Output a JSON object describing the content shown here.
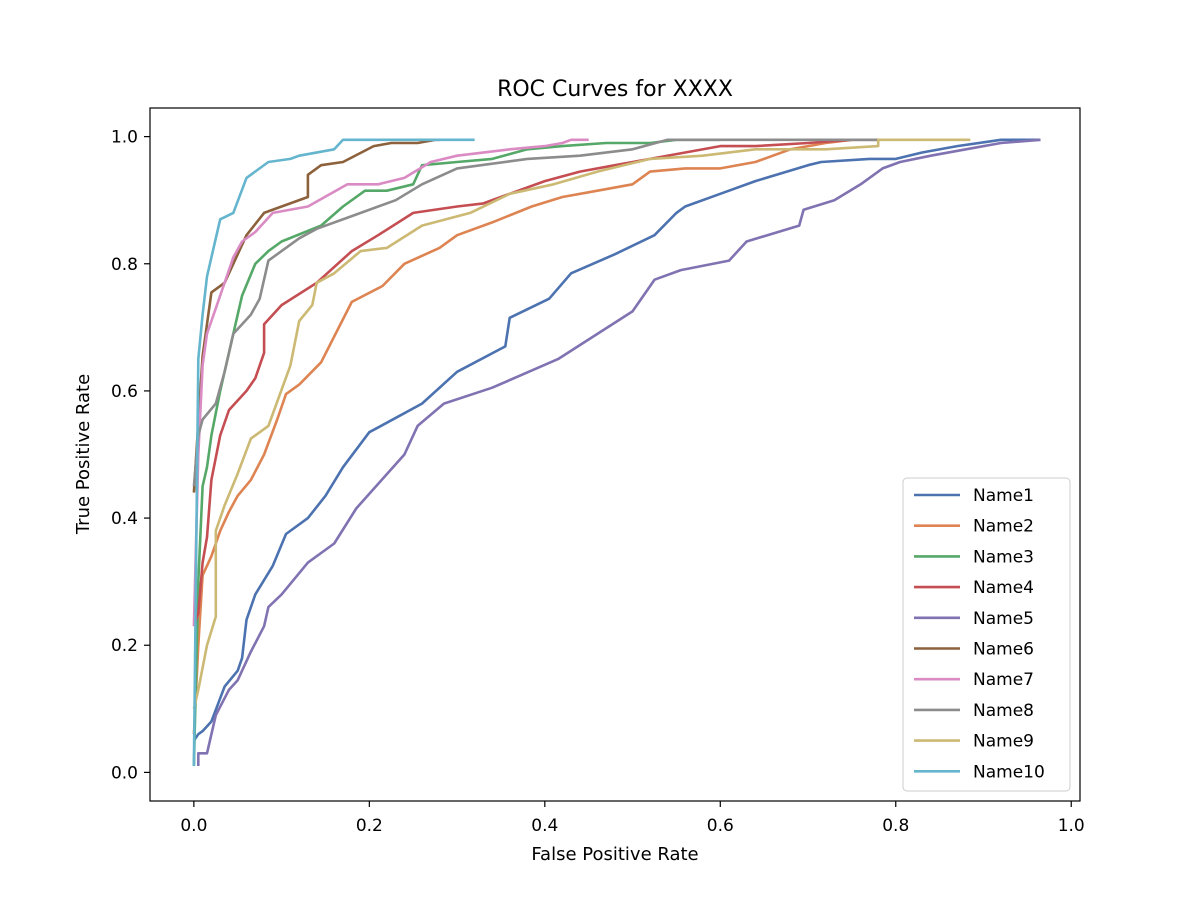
{
  "chart_data": {
    "type": "line",
    "title": "ROC Curves for XXXX",
    "xlabel": "False Positive Rate",
    "ylabel": "True Positive Rate",
    "xlim": [
      -0.05,
      1.01
    ],
    "ylim": [
      -0.045,
      1.045
    ],
    "xticks": [
      0.0,
      0.2,
      0.4,
      0.6,
      0.8,
      1.0
    ],
    "xtick_labels": [
      "0.0",
      "0.2",
      "0.4",
      "0.6",
      "0.8",
      "1.0"
    ],
    "yticks": [
      0.0,
      0.2,
      0.4,
      0.6,
      0.8,
      1.0
    ],
    "ytick_labels": [
      "0.0",
      "0.2",
      "0.4",
      "0.6",
      "0.8",
      "1.0"
    ],
    "grid": false,
    "legend_position": "lower-right",
    "series": [
      {
        "name": "Name1",
        "color": "#4c72b0",
        "x": [
          0.0,
          0.005,
          0.01,
          0.02,
          0.035,
          0.05,
          0.055,
          0.06,
          0.07,
          0.09,
          0.105,
          0.13,
          0.15,
          0.17,
          0.2,
          0.22,
          0.26,
          0.3,
          0.355,
          0.36,
          0.405,
          0.43,
          0.48,
          0.525,
          0.55,
          0.56,
          0.6,
          0.64,
          0.7,
          0.715,
          0.77,
          0.8,
          0.83,
          0.87,
          0.92,
          0.965
        ],
        "y": [
          0.05,
          0.06,
          0.065,
          0.08,
          0.135,
          0.16,
          0.18,
          0.24,
          0.28,
          0.325,
          0.375,
          0.4,
          0.435,
          0.48,
          0.535,
          0.55,
          0.58,
          0.63,
          0.67,
          0.715,
          0.745,
          0.785,
          0.815,
          0.845,
          0.88,
          0.89,
          0.91,
          0.93,
          0.955,
          0.96,
          0.965,
          0.965,
          0.975,
          0.985,
          0.995,
          0.995
        ]
      },
      {
        "name": "Name2",
        "color": "#dd8452",
        "x": [
          0.0,
          0.005,
          0.01,
          0.02,
          0.03,
          0.04,
          0.05,
          0.065,
          0.08,
          0.095,
          0.105,
          0.12,
          0.145,
          0.18,
          0.215,
          0.24,
          0.28,
          0.3,
          0.34,
          0.385,
          0.42,
          0.46,
          0.5,
          0.52,
          0.56,
          0.6,
          0.64,
          0.68,
          0.72,
          0.75
        ],
        "y": [
          0.06,
          0.2,
          0.31,
          0.34,
          0.38,
          0.41,
          0.435,
          0.46,
          0.5,
          0.555,
          0.595,
          0.61,
          0.645,
          0.74,
          0.765,
          0.8,
          0.825,
          0.845,
          0.865,
          0.89,
          0.905,
          0.915,
          0.925,
          0.945,
          0.95,
          0.95,
          0.96,
          0.98,
          0.99,
          0.995
        ]
      },
      {
        "name": "Name3",
        "color": "#55a868",
        "x": [
          0.0,
          0.005,
          0.01,
          0.015,
          0.02,
          0.03,
          0.04,
          0.05,
          0.055,
          0.07,
          0.085,
          0.1,
          0.145,
          0.17,
          0.195,
          0.22,
          0.25,
          0.26,
          0.3,
          0.34,
          0.38,
          0.42,
          0.47,
          0.52,
          0.55,
          0.6
        ],
        "y": [
          0.01,
          0.3,
          0.45,
          0.48,
          0.53,
          0.6,
          0.66,
          0.72,
          0.75,
          0.8,
          0.82,
          0.835,
          0.86,
          0.89,
          0.915,
          0.915,
          0.925,
          0.955,
          0.96,
          0.965,
          0.98,
          0.985,
          0.99,
          0.99,
          0.995,
          0.995
        ]
      },
      {
        "name": "Name4",
        "color": "#c44e52",
        "x": [
          0.0,
          0.005,
          0.01,
          0.015,
          0.02,
          0.03,
          0.04,
          0.06,
          0.07,
          0.08,
          0.08,
          0.1,
          0.14,
          0.18,
          0.21,
          0.25,
          0.3,
          0.33,
          0.36,
          0.4,
          0.44,
          0.48,
          0.52,
          0.56,
          0.6,
          0.64,
          0.7,
          0.75,
          0.78
        ],
        "y": [
          0.23,
          0.25,
          0.33,
          0.37,
          0.46,
          0.53,
          0.57,
          0.6,
          0.62,
          0.66,
          0.705,
          0.735,
          0.77,
          0.82,
          0.845,
          0.88,
          0.89,
          0.895,
          0.91,
          0.93,
          0.945,
          0.955,
          0.965,
          0.975,
          0.985,
          0.985,
          0.99,
          0.995,
          0.995
        ]
      },
      {
        "name": "Name5",
        "color": "#8172b2",
        "x": [
          0.005,
          0.005,
          0.015,
          0.025,
          0.04,
          0.05,
          0.065,
          0.08,
          0.085,
          0.1,
          0.13,
          0.16,
          0.185,
          0.24,
          0.255,
          0.285,
          0.34,
          0.415,
          0.5,
          0.525,
          0.555,
          0.61,
          0.63,
          0.69,
          0.695,
          0.73,
          0.76,
          0.785,
          0.805,
          0.84,
          0.88,
          0.92,
          0.965
        ],
        "y": [
          0.01,
          0.03,
          0.03,
          0.09,
          0.13,
          0.145,
          0.19,
          0.23,
          0.26,
          0.28,
          0.33,
          0.36,
          0.415,
          0.5,
          0.545,
          0.58,
          0.605,
          0.65,
          0.725,
          0.775,
          0.79,
          0.805,
          0.835,
          0.86,
          0.885,
          0.9,
          0.925,
          0.95,
          0.96,
          0.97,
          0.98,
          0.99,
          0.995
        ]
      },
      {
        "name": "Name6",
        "color": "#8c613c",
        "x": [
          0.0,
          0.005,
          0.01,
          0.02,
          0.035,
          0.045,
          0.06,
          0.08,
          0.1,
          0.13,
          0.13,
          0.145,
          0.17,
          0.205,
          0.225,
          0.255,
          0.275,
          0.28
        ],
        "y": [
          0.44,
          0.55,
          0.655,
          0.755,
          0.77,
          0.8,
          0.845,
          0.88,
          0.89,
          0.905,
          0.94,
          0.955,
          0.96,
          0.985,
          0.99,
          0.99,
          0.995,
          0.995
        ]
      },
      {
        "name": "Name7",
        "color": "#da8bc3",
        "x": [
          0.0,
          0.005,
          0.01,
          0.015,
          0.025,
          0.045,
          0.055,
          0.07,
          0.09,
          0.13,
          0.175,
          0.21,
          0.24,
          0.27,
          0.3,
          0.36,
          0.4,
          0.42,
          0.43,
          0.45
        ],
        "y": [
          0.23,
          0.5,
          0.64,
          0.69,
          0.73,
          0.81,
          0.835,
          0.85,
          0.88,
          0.89,
          0.925,
          0.925,
          0.935,
          0.96,
          0.97,
          0.98,
          0.985,
          0.99,
          0.995,
          0.995
        ]
      },
      {
        "name": "Name8",
        "color": "#8c8c8c",
        "x": [
          0.0,
          0.005,
          0.01,
          0.025,
          0.035,
          0.045,
          0.055,
          0.065,
          0.075,
          0.085,
          0.12,
          0.14,
          0.18,
          0.23,
          0.26,
          0.3,
          0.38,
          0.44,
          0.5,
          0.54,
          0.6,
          0.7,
          0.78
        ],
        "y": [
          0.45,
          0.53,
          0.555,
          0.58,
          0.63,
          0.69,
          0.705,
          0.72,
          0.745,
          0.805,
          0.84,
          0.855,
          0.875,
          0.9,
          0.925,
          0.95,
          0.965,
          0.97,
          0.98,
          0.995,
          0.995,
          0.995,
          0.995
        ]
      },
      {
        "name": "Name9",
        "color": "#ccb974",
        "x": [
          0.0,
          0.005,
          0.015,
          0.025,
          0.025,
          0.035,
          0.05,
          0.065,
          0.085,
          0.11,
          0.12,
          0.135,
          0.14,
          0.16,
          0.19,
          0.22,
          0.26,
          0.315,
          0.36,
          0.41,
          0.46,
          0.52,
          0.58,
          0.64,
          0.72,
          0.78,
          0.78,
          0.885
        ],
        "y": [
          0.1,
          0.13,
          0.2,
          0.245,
          0.38,
          0.42,
          0.47,
          0.525,
          0.545,
          0.64,
          0.71,
          0.735,
          0.77,
          0.785,
          0.82,
          0.825,
          0.86,
          0.88,
          0.91,
          0.925,
          0.945,
          0.965,
          0.97,
          0.98,
          0.98,
          0.985,
          0.995,
          0.995
        ]
      },
      {
        "name": "Name10",
        "color": "#64b5cd",
        "x": [
          0.0,
          0.005,
          0.01,
          0.015,
          0.02,
          0.025,
          0.03,
          0.045,
          0.06,
          0.085,
          0.11,
          0.12,
          0.16,
          0.17,
          0.2,
          0.25,
          0.3,
          0.32
        ],
        "y": [
          0.01,
          0.65,
          0.72,
          0.78,
          0.81,
          0.84,
          0.87,
          0.88,
          0.935,
          0.96,
          0.965,
          0.97,
          0.98,
          0.995,
          0.995,
          0.995,
          0.995,
          0.995
        ]
      }
    ]
  }
}
